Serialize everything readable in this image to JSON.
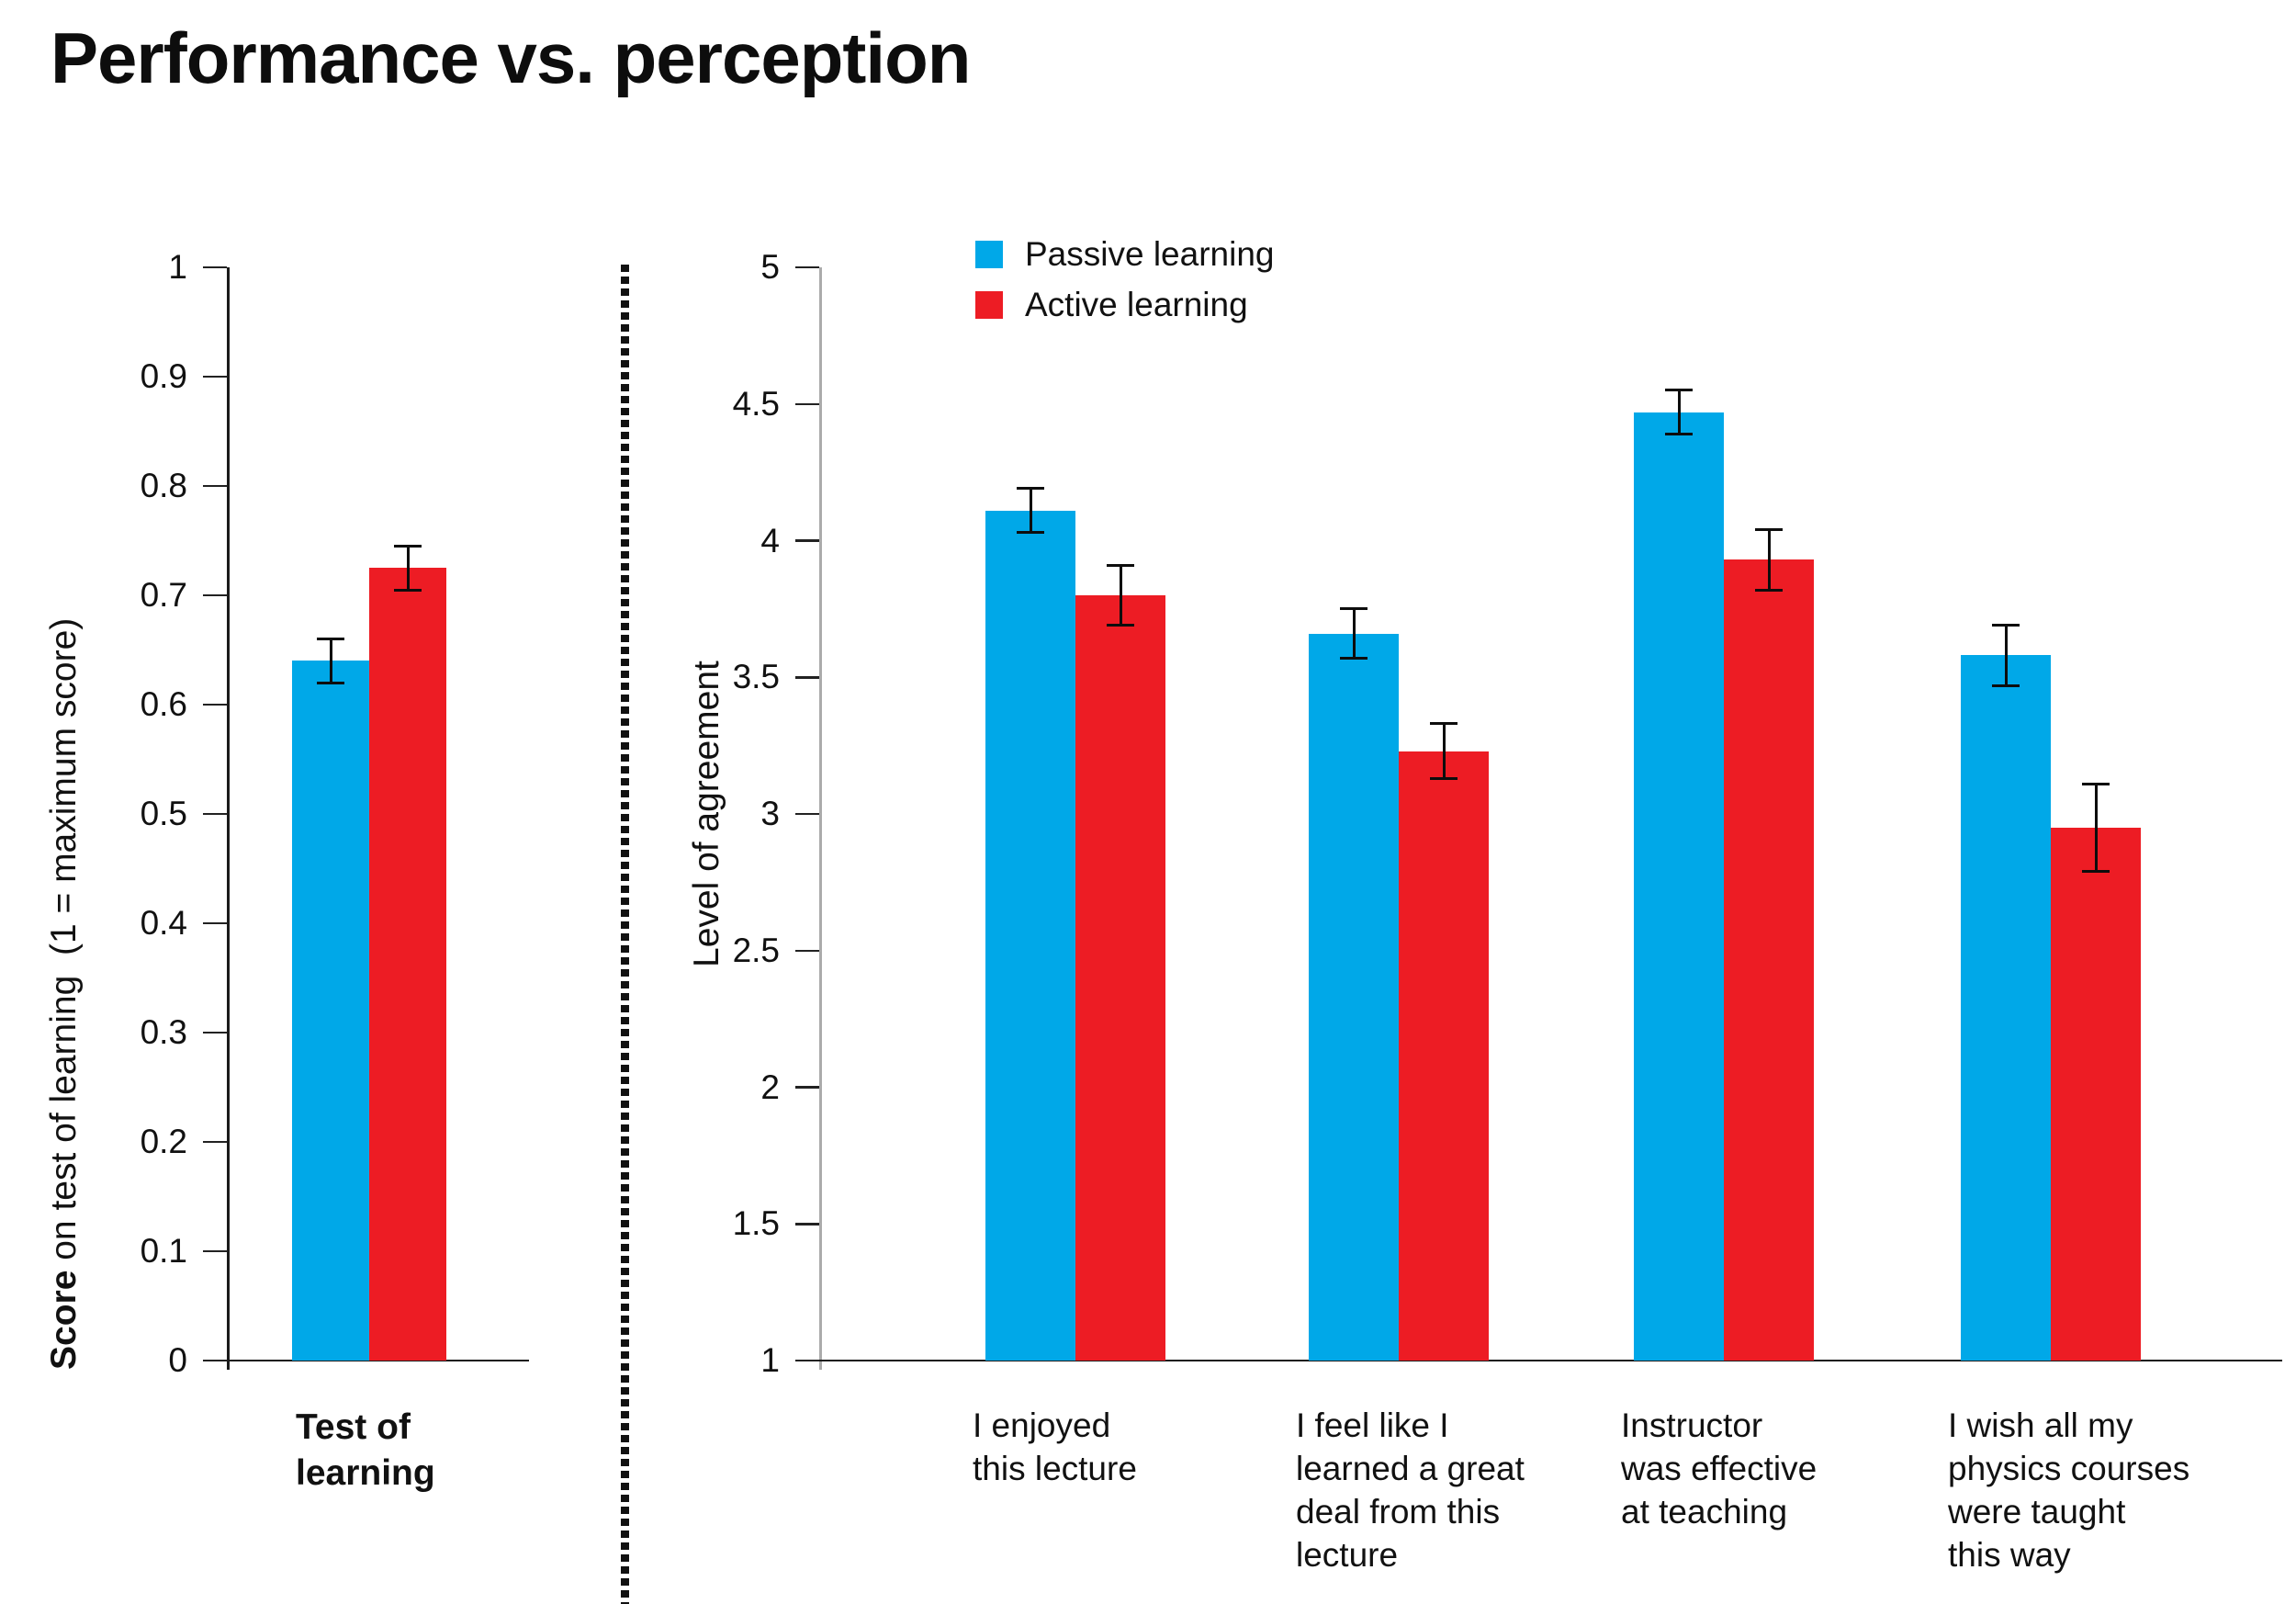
{
  "title": "Performance vs. perception",
  "colors": {
    "passive": "#00A8E8",
    "active": "#ED1C24"
  },
  "legend": [
    {
      "label": "Passive learning",
      "series": "passive"
    },
    {
      "label": "Active learning",
      "series": "active"
    }
  ],
  "chart_data": [
    {
      "id": "test-of-learning",
      "type": "bar",
      "ylabel_bold": "Score",
      "ylabel_rest": " on test of learning  (1 = maximum score)",
      "ylim": [
        0,
        1
      ],
      "yticks": [
        0,
        0.1,
        0.2,
        0.3,
        0.4,
        0.5,
        0.6,
        0.7,
        0.8,
        0.9,
        1
      ],
      "grid": false,
      "categories": [
        "Test of learning"
      ],
      "category_lines": [
        [
          "Test of",
          "learning"
        ]
      ],
      "category_bold": true,
      "series": [
        {
          "name": "Passive learning",
          "color_key": "passive",
          "values": [
            0.64
          ],
          "errors": [
            0.02
          ]
        },
        {
          "name": "Active learning",
          "color_key": "active",
          "values": [
            0.725
          ],
          "errors": [
            0.02
          ]
        }
      ]
    },
    {
      "id": "perception-of-learning",
      "type": "bar",
      "ylabel": "Level of agreement",
      "ylim": [
        1,
        5
      ],
      "yticks": [
        1,
        1.5,
        2,
        2.5,
        3,
        3.5,
        4,
        4.5,
        5
      ],
      "grid": false,
      "legend_position": "top",
      "categories": [
        "I enjoyed this lecture",
        "I feel like I learned a great deal from this lecture",
        "Instructor was effective at teaching",
        "I wish all my physics courses were taught this way"
      ],
      "category_lines": [
        [
          "I enjoyed",
          "this lecture"
        ],
        [
          "I feel like I",
          "learned a great",
          "deal from this",
          "lecture"
        ],
        [
          "Instructor",
          "was effective",
          "at teaching"
        ],
        [
          "I wish all my",
          "physics courses",
          "were taught",
          "this way"
        ]
      ],
      "category_bold": false,
      "series": [
        {
          "name": "Passive learning",
          "color_key": "passive",
          "values": [
            4.11,
            3.66,
            4.47,
            3.58
          ],
          "errors": [
            0.08,
            0.09,
            0.08,
            0.11
          ]
        },
        {
          "name": "Active learning",
          "color_key": "active",
          "values": [
            3.8,
            3.23,
            3.93,
            2.95
          ],
          "errors": [
            0.11,
            0.1,
            0.11,
            0.16
          ]
        }
      ]
    }
  ]
}
